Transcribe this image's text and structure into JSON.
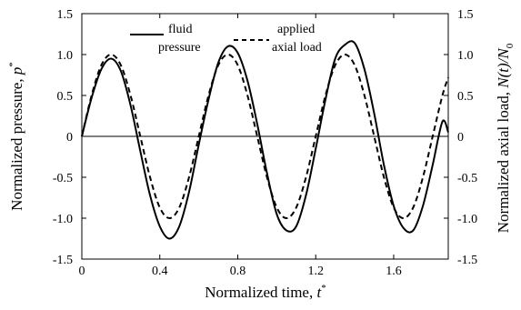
{
  "chart_data": {
    "type": "line",
    "x_axis": {
      "label_main": "Normalized  time, ",
      "label_var": "t",
      "label_sup": "*",
      "range": [
        0,
        1.88
      ],
      "ticks": [
        {
          "value": 0,
          "label": "0"
        },
        {
          "value": 0.4,
          "label": "0.4"
        },
        {
          "value": 0.8,
          "label": "0.8"
        },
        {
          "value": 1.2,
          "label": "1.2"
        },
        {
          "value": 1.6,
          "label": "1.6"
        }
      ]
    },
    "y_axis_left": {
      "label_main": "Normalized pressure, ",
      "label_var": "p",
      "label_sup": "*",
      "range": [
        -1.5,
        1.5
      ],
      "ticks": [
        {
          "value": 1.5,
          "label": "1.5"
        },
        {
          "value": 1.0,
          "label": "1.0"
        },
        {
          "value": 0.5,
          "label": "0.5"
        },
        {
          "value": 0,
          "label": "0"
        },
        {
          "value": -0.5,
          "label": "-0.5"
        },
        {
          "value": -1.0,
          "label": "-1.0"
        },
        {
          "value": -1.5,
          "label": "-1.5"
        }
      ]
    },
    "y_axis_right": {
      "label_main": "Normalized axial load, ",
      "label_var": "N(t)/N",
      "label_sub": "0",
      "range": [
        -1.5,
        1.5
      ],
      "ticks": [
        {
          "value": 1.5,
          "label": "1.5"
        },
        {
          "value": 1.0,
          "label": "1.0"
        },
        {
          "value": 0.5,
          "label": "0.5"
        },
        {
          "value": 0,
          "label": "0"
        },
        {
          "value": -0.5,
          "label": "-0.5"
        },
        {
          "value": -1.0,
          "label": "-1.0"
        },
        {
          "value": -1.5,
          "label": "-1.5"
        }
      ]
    },
    "zero_line": true,
    "grid": false,
    "legend": {
      "placement": "top",
      "entries": [
        {
          "line1": "fluid",
          "line2": "pressure"
        },
        {
          "line1": "applied",
          "line2": "axial load"
        }
      ]
    },
    "series": [
      {
        "style": "solid",
        "color": "#000000",
        "points": [
          [
            0.0,
            0.0
          ],
          [
            0.05,
            0.47
          ],
          [
            0.1,
            0.82
          ],
          [
            0.15,
            0.95
          ],
          [
            0.2,
            0.8
          ],
          [
            0.25,
            0.38
          ],
          [
            0.3,
            -0.18
          ],
          [
            0.35,
            -0.72
          ],
          [
            0.4,
            -1.1
          ],
          [
            0.45,
            -1.25
          ],
          [
            0.5,
            -1.1
          ],
          [
            0.55,
            -0.68
          ],
          [
            0.6,
            -0.1
          ],
          [
            0.65,
            0.45
          ],
          [
            0.7,
            0.9
          ],
          [
            0.75,
            1.1
          ],
          [
            0.8,
            1.02
          ],
          [
            0.85,
            0.68
          ],
          [
            0.9,
            0.15
          ],
          [
            0.95,
            -0.45
          ],
          [
            1.0,
            -0.95
          ],
          [
            1.05,
            -1.15
          ],
          [
            1.1,
            -1.1
          ],
          [
            1.15,
            -0.72
          ],
          [
            1.2,
            -0.15
          ],
          [
            1.25,
            0.45
          ],
          [
            1.3,
            0.95
          ],
          [
            1.35,
            1.12
          ],
          [
            1.4,
            1.14
          ],
          [
            1.45,
            0.82
          ],
          [
            1.5,
            0.28
          ],
          [
            1.55,
            -0.35
          ],
          [
            1.6,
            -0.85
          ],
          [
            1.65,
            -1.12
          ],
          [
            1.7,
            -1.15
          ],
          [
            1.75,
            -0.85
          ],
          [
            1.8,
            -0.35
          ],
          [
            1.85,
            0.18
          ],
          [
            1.88,
            0.05
          ]
        ]
      },
      {
        "style": "dashed",
        "color": "#000000",
        "points": [
          [
            0.0,
            0.0
          ],
          [
            0.05,
            0.5
          ],
          [
            0.1,
            0.87
          ],
          [
            0.15,
            1.0
          ],
          [
            0.2,
            0.87
          ],
          [
            0.25,
            0.5
          ],
          [
            0.3,
            0.0
          ],
          [
            0.35,
            -0.5
          ],
          [
            0.4,
            -0.87
          ],
          [
            0.45,
            -1.0
          ],
          [
            0.5,
            -0.87
          ],
          [
            0.55,
            -0.5
          ],
          [
            0.6,
            0.0
          ],
          [
            0.65,
            0.5
          ],
          [
            0.7,
            0.87
          ],
          [
            0.75,
            1.0
          ],
          [
            0.8,
            0.87
          ],
          [
            0.85,
            0.5
          ],
          [
            0.9,
            0.0
          ],
          [
            0.95,
            -0.5
          ],
          [
            1.0,
            -0.87
          ],
          [
            1.05,
            -1.0
          ],
          [
            1.1,
            -0.87
          ],
          [
            1.15,
            -0.5
          ],
          [
            1.2,
            0.0
          ],
          [
            1.25,
            0.5
          ],
          [
            1.3,
            0.87
          ],
          [
            1.35,
            1.0
          ],
          [
            1.4,
            0.87
          ],
          [
            1.45,
            0.5
          ],
          [
            1.5,
            0.0
          ],
          [
            1.55,
            -0.5
          ],
          [
            1.6,
            -0.87
          ],
          [
            1.65,
            -1.0
          ],
          [
            1.7,
            -0.87
          ],
          [
            1.75,
            -0.5
          ],
          [
            1.8,
            0.0
          ],
          [
            1.85,
            0.5
          ],
          [
            1.88,
            0.72
          ]
        ]
      }
    ]
  }
}
